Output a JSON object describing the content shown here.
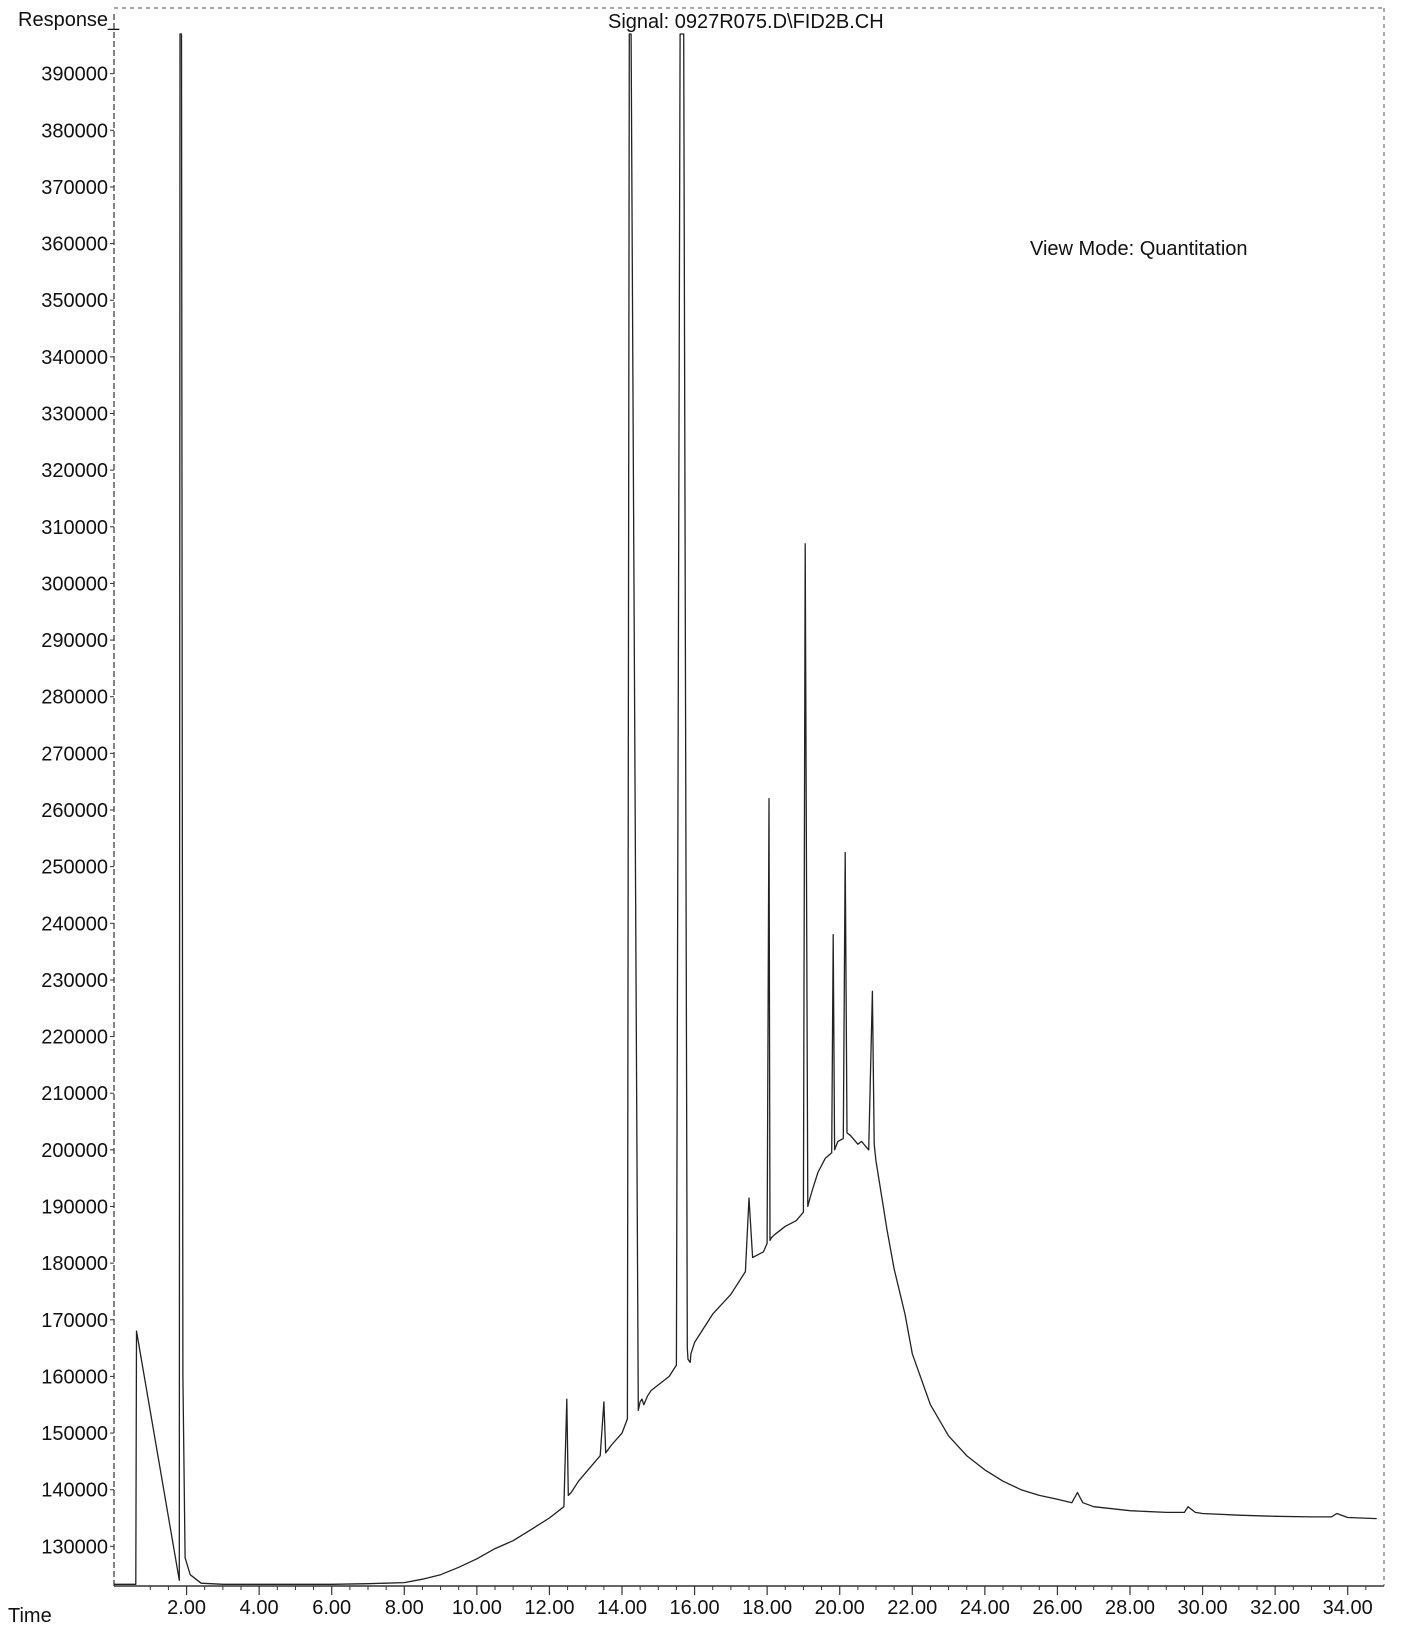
{
  "header": {
    "signal": "Signal: 0927R075.D\\FID2B.CH",
    "view_mode": "View Mode: Quantitation"
  },
  "chart_data": {
    "type": "line",
    "title": "Signal: 0927R075.D\\FID2B.CH",
    "annotation": "View Mode: Quantitation",
    "ylabel": "Response_",
    "xlabel": "Time",
    "xlim": [
      0.0,
      35.0
    ],
    "ylim": [
      123000,
      397000
    ],
    "x_ticks": [
      2,
      4,
      6,
      8,
      10,
      12,
      14,
      16,
      18,
      20,
      22,
      24,
      26,
      28,
      30,
      32,
      34
    ],
    "x_tick_labels": [
      "2.00",
      "4.00",
      "6.00",
      "8.00",
      "10.00",
      "12.00",
      "14.00",
      "16.00",
      "18.00",
      "20.00",
      "22.00",
      "24.00",
      "26.00",
      "28.00",
      "30.00",
      "32.00",
      "34.00"
    ],
    "y_ticks": [
      130000,
      140000,
      150000,
      160000,
      170000,
      180000,
      190000,
      200000,
      210000,
      220000,
      230000,
      240000,
      250000,
      260000,
      270000,
      280000,
      290000,
      300000,
      310000,
      320000,
      330000,
      340000,
      350000,
      360000,
      370000,
      380000,
      390000
    ],
    "y_tick_labels": [
      "130000",
      "140000",
      "150000",
      "160000",
      "170000",
      "180000",
      "190000",
      "200000",
      "210000",
      "220000",
      "230000",
      "240000",
      "250000",
      "260000",
      "270000",
      "280000",
      "290000",
      "300000",
      "310000",
      "320000",
      "330000",
      "340000",
      "350000",
      "360000",
      "370000",
      "380000",
      "390000"
    ],
    "grid": false,
    "legend": "none",
    "series": [
      {
        "color": "#222222",
        "x": [
          0.0,
          0.6,
          0.62,
          1.8,
          1.82,
          1.86,
          1.9,
          1.96,
          2.1,
          2.4,
          3.0,
          3.5,
          4.0,
          5.0,
          6.0,
          7.0,
          8.0,
          8.5,
          9.0,
          9.5,
          10.0,
          10.5,
          11.0,
          11.5,
          12.0,
          12.4,
          12.48,
          12.52,
          12.6,
          12.8,
          13.0,
          13.4,
          13.5,
          13.55,
          13.7,
          14.0,
          14.15,
          14.2,
          14.25,
          14.45,
          14.5,
          14.55,
          14.6,
          14.7,
          14.8,
          15.0,
          15.3,
          15.5,
          15.6,
          15.7,
          15.8,
          15.82,
          15.88,
          15.9,
          16.0,
          16.2,
          16.5,
          17.0,
          17.4,
          17.5,
          17.6,
          17.9,
          18.0,
          18.05,
          18.08,
          18.12,
          18.2,
          18.5,
          18.8,
          19.0,
          19.05,
          19.12,
          19.18,
          19.25,
          19.4,
          19.6,
          19.78,
          19.82,
          19.86,
          19.95,
          20.1,
          20.15,
          20.2,
          20.3,
          20.5,
          20.6,
          20.8,
          20.9,
          20.95,
          21.0,
          21.2,
          21.3,
          21.5,
          21.8,
          22.0,
          22.5,
          23.0,
          23.5,
          24.0,
          24.5,
          25.0,
          25.5,
          26.0,
          26.4,
          26.55,
          26.7,
          27.0,
          28.0,
          29.0,
          29.5,
          29.6,
          29.8,
          30.0,
          31.0,
          32.0,
          33.0,
          33.55,
          33.7,
          34.0,
          34.8
        ],
        "y": [
          123300,
          123300,
          168000,
          124000,
          397000,
          397000,
          160000,
          128000,
          125000,
          123500,
          123300,
          123300,
          123300,
          123300,
          123300,
          123400,
          123600,
          124200,
          125000,
          126300,
          127800,
          129600,
          131000,
          133000,
          135000,
          137000,
          156000,
          139000,
          139500,
          141500,
          143000,
          146000,
          155500,
          146500,
          147800,
          150000,
          152500,
          397000,
          397000,
          154000,
          155500,
          156000,
          155000,
          156500,
          157500,
          158500,
          160000,
          162000,
          397000,
          397000,
          165000,
          163000,
          162500,
          164000,
          166000,
          168000,
          171000,
          174500,
          178500,
          191500,
          181000,
          182000,
          183500,
          262000,
          184000,
          184500,
          185000,
          186500,
          187500,
          189000,
          307000,
          190000,
          191500,
          193000,
          196000,
          198500,
          199500,
          238000,
          200000,
          201500,
          202000,
          252500,
          203000,
          202500,
          201000,
          201500,
          200000,
          228000,
          201000,
          198000,
          190000,
          186000,
          179000,
          171000,
          164000,
          155000,
          149500,
          146000,
          143500,
          141500,
          140000,
          139000,
          138300,
          137700,
          139500,
          137700,
          137000,
          136300,
          136000,
          136000,
          137000,
          136000,
          135800,
          135500,
          135300,
          135200,
          135200,
          135800,
          135100,
          134900
        ]
      }
    ]
  }
}
